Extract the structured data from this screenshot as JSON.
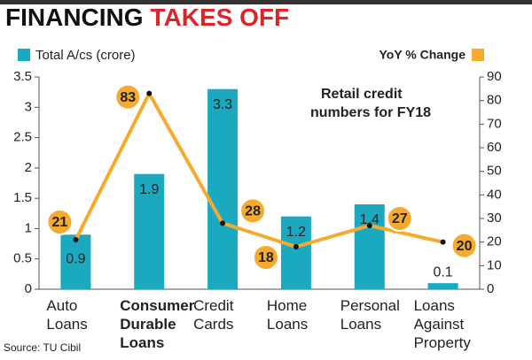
{
  "chart_data": {
    "type": "bar-line",
    "title": [
      "FINANCING",
      "TAKES OFF"
    ],
    "annotation": [
      "Retail credit",
      "numbers for FY18"
    ],
    "source": "Source: TU Cibil",
    "categories": [
      [
        "Auto",
        "Loans"
      ],
      [
        "Consumer",
        "Durable",
        "Loans"
      ],
      [
        "Credit",
        "Cards"
      ],
      [
        "Home",
        "Loans"
      ],
      [
        "Personal",
        "Loans"
      ],
      [
        "Loans",
        "Against",
        "Property"
      ]
    ],
    "series": [
      {
        "name": "Total A/cs (crore)",
        "color": "#1ba9c0",
        "values": [
          0.9,
          1.9,
          3.3,
          1.2,
          1.4,
          0.1
        ]
      },
      {
        "name": "YoY % Change",
        "color": "#f6ab2f",
        "axis": "y2",
        "values": [
          21,
          83,
          28,
          18,
          27,
          20
        ]
      }
    ],
    "ylim": [
      0,
      3.5
    ],
    "yticks": [
      0,
      0.5,
      1,
      1.5,
      2,
      2.5,
      3,
      3.5
    ],
    "y2lim": [
      0,
      90
    ],
    "y2ticks": [
      0,
      10,
      20,
      30,
      40,
      50,
      60,
      70,
      80,
      90
    ]
  }
}
